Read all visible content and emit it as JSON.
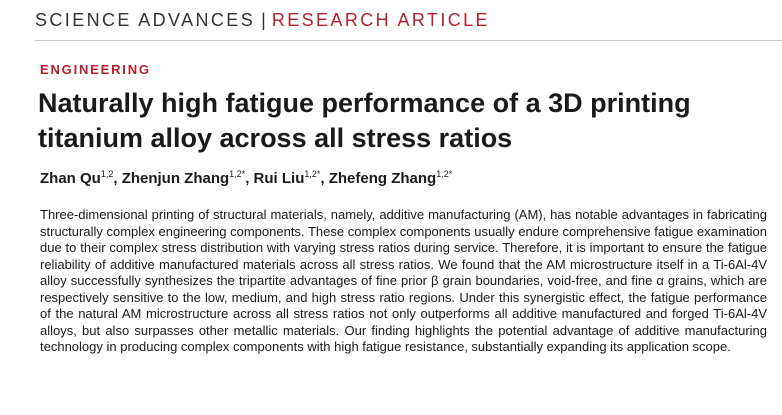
{
  "header": {
    "journal": "SCIENCE ADVANCES",
    "separator": "|",
    "article_type": "RESEARCH ARTICLE"
  },
  "section": "ENGINEERING",
  "title": "Naturally high fatigue performance of a 3D printing titanium alloy across all stress ratios",
  "authors": [
    {
      "name": "Zhan Qu",
      "affil": "1,2",
      "sep": ", "
    },
    {
      "name": "Zhenjun Zhang",
      "affil": "1,2*",
      "sep": ", "
    },
    {
      "name": "Rui Liu",
      "affil": "1,2*",
      "sep": ", "
    },
    {
      "name": "Zhefeng Zhang",
      "affil": "1,2*",
      "sep": ""
    }
  ],
  "abstract": "Three-dimensional printing of structural materials, namely, additive manufacturing (AM), has notable advantages in fabricating structurally complex engineering components. These complex components usually endure comprehensive fatigue examination due to their complex stress distribution with varying stress ratios during service. Therefore, it is important to ensure the fatigue reliability of additive manufactured materials across all stress ratios. We found that the AM microstructure itself in a Ti-6Al-4V alloy successfully synthesizes the tripartite advantages of fine prior β grain boundaries, void-free, and fine α grains, which are respectively sensitive to the low, medium, and high stress ratio regions. Under this synergistic effect, the fatigue performance of the natural AM microstructure across all stress ratios not only outperforms all additive manufactured and forged Ti-6Al-4V alloys, but also surpasses other metallic materials. Our finding highlights the potential advantage of additive manufacturing technology in producing complex components with high fatigue resistance, substantially expanding its application scope."
}
